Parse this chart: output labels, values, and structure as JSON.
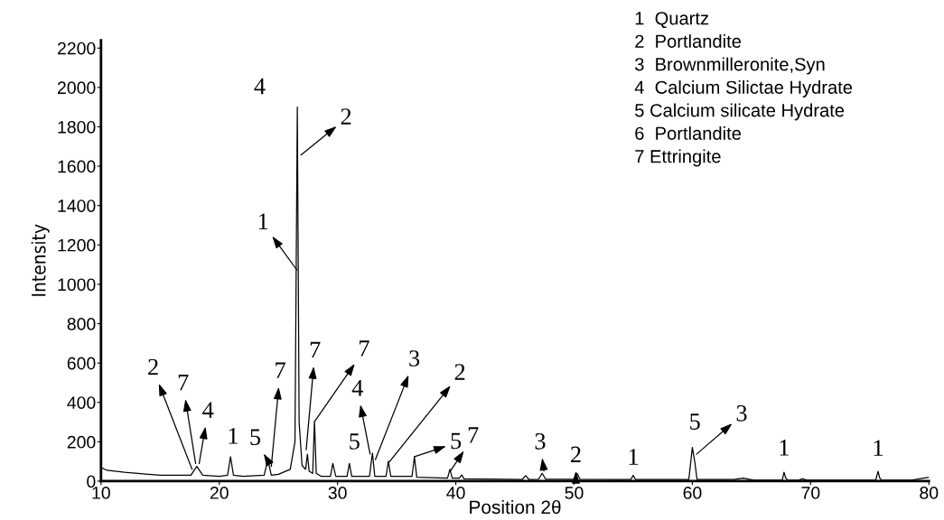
{
  "chart_data": {
    "type": "line",
    "xlabel": "Position 2θ",
    "ylabel": "Intensity",
    "xlim": [
      10,
      80
    ],
    "xticks": [
      10,
      20,
      30,
      40,
      50,
      60,
      70,
      80
    ],
    "ylim": [
      0,
      2240
    ],
    "yticks": [
      0,
      200,
      400,
      600,
      800,
      1000,
      1200,
      1400,
      1600,
      1800,
      2000,
      2200
    ],
    "grid": false,
    "legend": false,
    "marker": "none",
    "line_style": "solid",
    "series": [
      {
        "color": "#000000",
        "x": [
          10,
          10.5,
          12,
          14,
          15,
          17,
          17.6,
          18.1,
          18.6,
          20.0,
          20.7,
          20.95,
          21.2,
          22,
          23.8,
          24.1,
          24.4,
          25,
          26,
          26.4,
          26.6,
          26.75,
          27.0,
          27.3,
          27.45,
          27.6,
          27.9,
          28.05,
          28.2,
          28.6,
          29.4,
          29.6,
          29.85,
          30.8,
          31.0,
          31.2,
          32.7,
          32.95,
          33.15,
          34.1,
          34.3,
          34.5,
          36.3,
          36.5,
          36.7,
          39.3,
          39.5,
          39.7,
          40.3,
          40.5,
          40.7,
          45.6,
          45.9,
          46.2,
          47.0,
          47.3,
          47.6,
          50.0,
          50.25,
          50.5,
          54.8,
          55.0,
          55.2,
          59.7,
          60.0,
          60.2,
          60.4,
          63.5,
          64.3,
          65.2,
          67.6,
          67.75,
          67.9,
          68.1,
          69.0,
          69.3,
          69.7,
          75.5,
          75.7,
          75.85,
          76.0,
          78.5,
          80
        ],
        "values": [
          70,
          55,
          45,
          35,
          30,
          30,
          30,
          75,
          30,
          25,
          30,
          124,
          30,
          25,
          30,
          110,
          30,
          35,
          60,
          200,
          1900,
          300,
          80,
          60,
          137,
          50,
          40,
          307,
          40,
          25,
          25,
          90,
          25,
          25,
          90,
          25,
          25,
          143,
          25,
          25,
          101,
          25,
          25,
          124,
          20,
          15,
          60,
          15,
          15,
          32,
          12,
          8,
          28,
          8,
          10,
          40,
          10,
          10,
          40,
          10,
          8,
          30,
          8,
          8,
          171,
          100,
          8,
          8,
          15,
          5,
          5,
          45,
          15,
          5,
          5,
          12,
          5,
          5,
          50,
          15,
          5,
          5,
          20
        ]
      }
    ],
    "annotations": [
      {
        "text": "2",
        "x": 17.7,
        "y": 60
      },
      {
        "text": "7",
        "x": 18.0,
        "y": 90
      },
      {
        "text": "4",
        "x": 18.3,
        "y": 90
      },
      {
        "text": "1",
        "x": 20.95,
        "y": 124
      },
      {
        "text": "5",
        "x": 24.1,
        "y": 105
      },
      {
        "text": "7",
        "x": 24.4,
        "y": 75
      },
      {
        "text": "4",
        "x": 26.6,
        "y": 1900
      },
      {
        "text": "2",
        "x": 26.9,
        "y": 1657
      },
      {
        "text": "1",
        "x": 26.56,
        "y": 1073
      },
      {
        "text": "7",
        "x": 27.35,
        "y": 160
      },
      {
        "text": "7",
        "x": 28.1,
        "y": 307
      },
      {
        "text": "5",
        "x": 31.0,
        "y": 90
      },
      {
        "text": "4",
        "x": 32.75,
        "y": 138
      },
      {
        "text": "3",
        "x": 33.2,
        "y": 110
      },
      {
        "text": "2",
        "x": 34.3,
        "y": 92
      },
      {
        "text": "5",
        "x": 36.5,
        "y": 124
      },
      {
        "text": "7",
        "x": 39.55,
        "y": 52
      },
      {
        "text": "3",
        "x": 47.45,
        "y": 52
      },
      {
        "text": "2",
        "x": 50.15,
        "y": 23
      },
      {
        "text": "1",
        "x": 55.0,
        "y": 30
      },
      {
        "text": "5",
        "x": 60.0,
        "y": 171
      },
      {
        "text": "3",
        "x": 60.35,
        "y": 137
      },
      {
        "text": "1",
        "x": 67.75,
        "y": 45
      },
      {
        "text": "1",
        "x": 75.7,
        "y": 50
      },
      "1  Quartz",
      "2  Portlandite",
      "3  Brownmilleronite,Syn",
      "4  Calcium Silictae Hydrate",
      "5 Calcium silicate Hydrate",
      "6  Portlandite",
      "7 Ettringite"
    ]
  }
}
